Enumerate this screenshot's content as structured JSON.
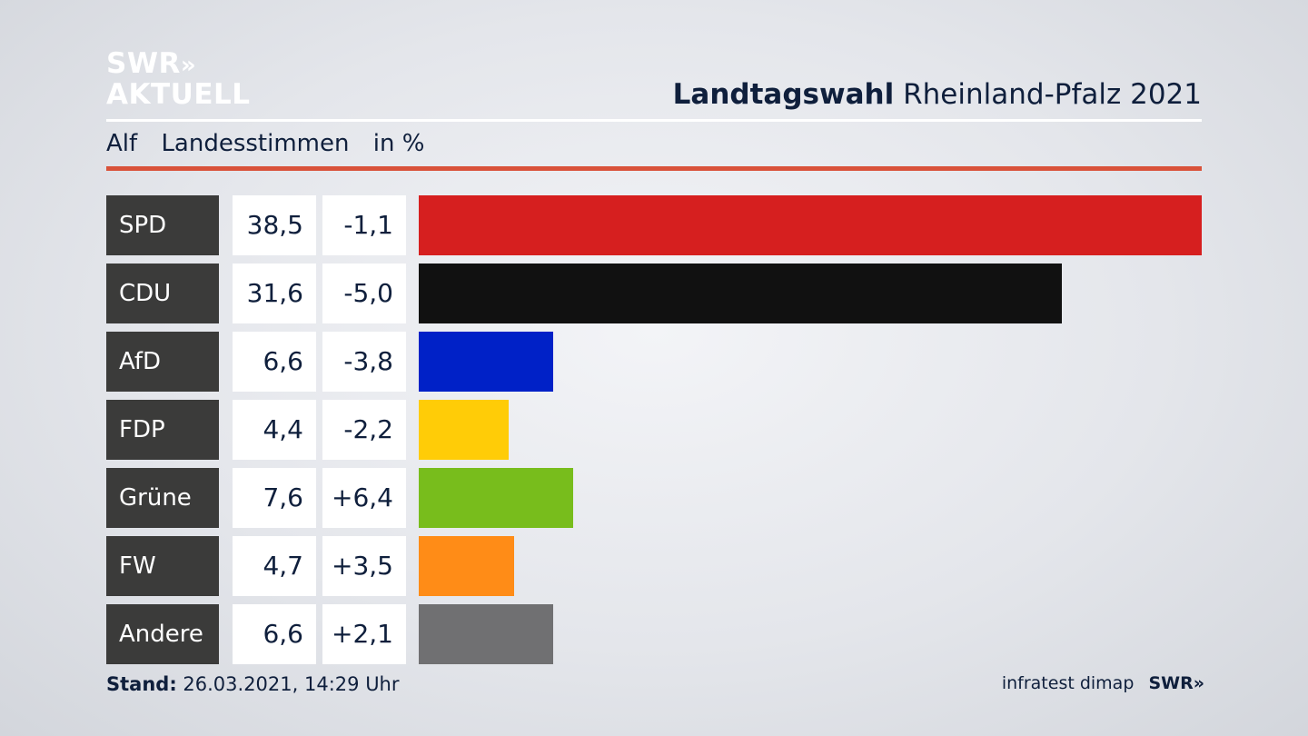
{
  "logo": {
    "line1": "SWR",
    "chevrons": "»",
    "line2": "AKTUELL"
  },
  "header": {
    "title_bold": "Landtagswahl",
    "title_rest": "Rheinland-Pfalz 2021"
  },
  "subheader": {
    "place": "Alf",
    "metric": "Landesstimmen",
    "unit": "in %"
  },
  "colors": {
    "accent_rule": "#d9523a",
    "party_label_bg": "#3b3b3a"
  },
  "chart_data": {
    "type": "bar",
    "orientation": "horizontal",
    "categories": [
      "SPD",
      "CDU",
      "AfD",
      "FDP",
      "Grüne",
      "FW",
      "Andere"
    ],
    "values": [
      38.5,
      31.6,
      6.6,
      4.4,
      7.6,
      4.7,
      6.6
    ],
    "value_labels": [
      "38,5",
      "31,6",
      "6,6",
      "4,4",
      "7,6",
      "4,7",
      "6,6"
    ],
    "change_labels": [
      "-1,1",
      "-5,0",
      "-3,8",
      "-2,2",
      "+6,4",
      "+3,5",
      "+2,1"
    ],
    "changes": [
      -1.1,
      -5.0,
      -3.8,
      -2.2,
      6.4,
      3.5,
      2.1
    ],
    "colors": [
      "#d61f1f",
      "#111111",
      "#0021c7",
      "#ffcc07",
      "#78bd1c",
      "#ff8c17",
      "#707072"
    ],
    "xlim": [
      0,
      38.5
    ]
  },
  "footer": {
    "stand_label": "Stand:",
    "stand_value": "26.03.2021, 14:29 Uhr",
    "source": "infratest dimap",
    "brand": "SWR",
    "brand_chevrons": "»"
  }
}
